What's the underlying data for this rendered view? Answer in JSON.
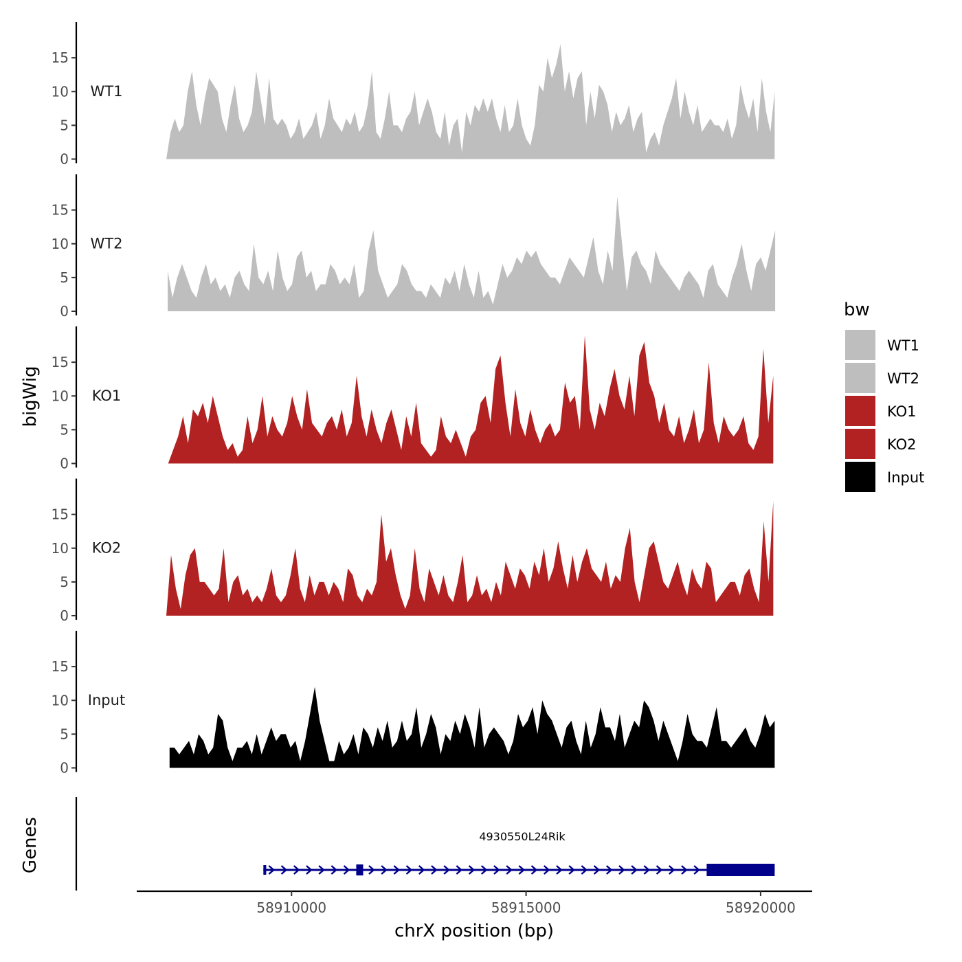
{
  "chart_data": {
    "type": "area",
    "ylabel": "bigWig",
    "xlabel": "chrX position (bp)",
    "xlim": [
      58906700,
      58921100
    ],
    "ylim": [
      0,
      20
    ],
    "yticks": [
      0,
      5,
      10,
      15
    ],
    "xticks": [
      58910000,
      58915000,
      58920000
    ],
    "xtick_labels": [
      "58910000",
      "58915000",
      "58920000"
    ],
    "legend": {
      "title": "bw",
      "position": "right",
      "entries": [
        {
          "label": "WT1",
          "color": "#bebebe"
        },
        {
          "label": "WT2",
          "color": "#bebebe"
        },
        {
          "label": "KO1",
          "color": "#b22222"
        },
        {
          "label": "KO2",
          "color": "#b22222"
        },
        {
          "label": "Input",
          "color": "#000000"
        }
      ]
    },
    "series": [
      {
        "name": "WT1",
        "color": "#bebebe",
        "x_start": 58907330,
        "x_end": 58920300,
        "values": [
          0,
          4,
          6,
          4,
          5,
          10,
          13,
          8,
          5,
          9,
          12,
          11,
          10,
          6,
          4,
          8,
          11,
          6,
          4,
          5,
          7,
          13,
          9,
          5,
          12,
          6,
          5,
          6,
          5,
          3,
          4,
          6,
          3,
          4,
          5,
          7,
          3,
          5,
          9,
          6,
          5,
          4,
          6,
          5,
          7,
          4,
          5,
          8,
          13,
          4,
          3,
          6,
          10,
          5,
          5,
          4,
          6,
          7,
          10,
          5,
          7,
          9,
          7,
          4,
          3,
          7,
          2,
          5,
          6,
          1,
          7,
          5,
          8,
          7,
          9,
          7,
          9,
          6,
          4,
          8,
          4,
          5,
          9,
          5,
          3,
          2,
          5,
          11,
          10,
          15,
          12,
          14,
          17,
          10,
          13,
          9,
          12,
          13,
          5,
          10,
          6,
          11,
          10,
          8,
          4,
          7,
          5,
          6,
          8,
          4,
          6,
          7,
          1,
          3,
          4,
          2,
          5,
          7,
          9,
          12,
          6,
          10,
          7,
          5,
          8,
          4,
          5,
          6,
          5,
          5,
          4,
          6,
          3,
          5,
          11,
          8,
          6,
          9,
          4,
          12,
          7,
          4,
          10
        ]
      },
      {
        "name": "WT2",
        "color": "#bebebe",
        "x_start": 58907360,
        "x_end": 58920310,
        "values": [
          6,
          2,
          5,
          7,
          5,
          3,
          2,
          5,
          7,
          4,
          5,
          3,
          4,
          2,
          5,
          6,
          4,
          3,
          10,
          5,
          4,
          6,
          3,
          9,
          5,
          3,
          4,
          8,
          9,
          5,
          6,
          3,
          4,
          4,
          7,
          6,
          4,
          5,
          4,
          7,
          2,
          3,
          9,
          12,
          6,
          4,
          2,
          3,
          4,
          7,
          6,
          4,
          3,
          3,
          2,
          4,
          3,
          2,
          5,
          4,
          6,
          3,
          7,
          4,
          2,
          6,
          2,
          3,
          1,
          4,
          7,
          5,
          6,
          8,
          7,
          9,
          8,
          9,
          7,
          6,
          5,
          5,
          4,
          6,
          8,
          7,
          6,
          5,
          8,
          11,
          6,
          4,
          9,
          6,
          17,
          10,
          3,
          8,
          9,
          7,
          6,
          4,
          9,
          7,
          6,
          5,
          4,
          3,
          5,
          6,
          5,
          4,
          2,
          6,
          7,
          4,
          3,
          2,
          5,
          7,
          10,
          6,
          3,
          7,
          8,
          6,
          9,
          12
        ]
      },
      {
        "name": "KO1",
        "color": "#b22222",
        "x_start": 58907370,
        "x_end": 58920270,
        "values": [
          0,
          2,
          4,
          7,
          3,
          8,
          7,
          9,
          6,
          10,
          7,
          4,
          2,
          3,
          1,
          2,
          7,
          3,
          5,
          10,
          4,
          7,
          5,
          4,
          6,
          10,
          7,
          5,
          11,
          6,
          5,
          4,
          6,
          7,
          5,
          8,
          4,
          6,
          13,
          7,
          4,
          8,
          5,
          3,
          6,
          8,
          5,
          2,
          7,
          4,
          9,
          3,
          2,
          1,
          2,
          7,
          4,
          3,
          5,
          3,
          1,
          4,
          5,
          9,
          10,
          6,
          14,
          16,
          9,
          4,
          11,
          6,
          4,
          8,
          5,
          3,
          5,
          6,
          4,
          5,
          12,
          9,
          10,
          5,
          19,
          8,
          5,
          9,
          7,
          11,
          14,
          10,
          8,
          13,
          7,
          16,
          18,
          12,
          10,
          6,
          9,
          5,
          4,
          7,
          3,
          5,
          8,
          3,
          5,
          15,
          6,
          3,
          7,
          5,
          4,
          5,
          7,
          3,
          2,
          4,
          17,
          6,
          13
        ]
      },
      {
        "name": "KO2",
        "color": "#b22222",
        "x_start": 58907330,
        "x_end": 58920270,
        "values": [
          0,
          9,
          4,
          1,
          6,
          9,
          10,
          5,
          5,
          4,
          3,
          4,
          10,
          2,
          5,
          6,
          3,
          4,
          2,
          3,
          2,
          4,
          7,
          3,
          2,
          3,
          6,
          10,
          4,
          2,
          6,
          3,
          5,
          5,
          3,
          5,
          4,
          2,
          7,
          6,
          3,
          2,
          4,
          3,
          5,
          15,
          8,
          10,
          6,
          3,
          1,
          3,
          10,
          4,
          2,
          7,
          5,
          3,
          6,
          3,
          2,
          5,
          9,
          2,
          3,
          6,
          3,
          4,
          2,
          5,
          3,
          8,
          6,
          4,
          7,
          6,
          4,
          8,
          6,
          10,
          5,
          7,
          11,
          7,
          4,
          9,
          5,
          8,
          10,
          7,
          6,
          5,
          8,
          4,
          6,
          5,
          10,
          13,
          5,
          2,
          6,
          10,
          11,
          8,
          5,
          4,
          6,
          8,
          5,
          3,
          7,
          5,
          4,
          8,
          7,
          2,
          3,
          4,
          5,
          5,
          3,
          6,
          7,
          4,
          2,
          14,
          5,
          17
        ]
      },
      {
        "name": "Input",
        "color": "#000000",
        "x_start": 58907400,
        "x_end": 58920300,
        "values": [
          3,
          3,
          2,
          3,
          4,
          2,
          5,
          4,
          2,
          3,
          8,
          7,
          3,
          1,
          3,
          3,
          4,
          2,
          5,
          2,
          4,
          6,
          4,
          5,
          5,
          3,
          4,
          1,
          4,
          8,
          12,
          7,
          4,
          1,
          1,
          4,
          2,
          3,
          5,
          2,
          6,
          5,
          3,
          6,
          4,
          7,
          3,
          4,
          7,
          4,
          5,
          9,
          3,
          5,
          8,
          6,
          2,
          5,
          4,
          7,
          5,
          8,
          6,
          3,
          9,
          3,
          5,
          6,
          5,
          4,
          2,
          4,
          8,
          6,
          7,
          9,
          5,
          10,
          8,
          7,
          5,
          3,
          6,
          7,
          4,
          2,
          7,
          3,
          5,
          9,
          6,
          6,
          4,
          8,
          3,
          5,
          7,
          6,
          10,
          9,
          7,
          4,
          7,
          5,
          3,
          1,
          4,
          8,
          5,
          4,
          4,
          3,
          6,
          9,
          4,
          4,
          3,
          4,
          5,
          6,
          4,
          3,
          5,
          8,
          6,
          7
        ]
      }
    ],
    "genes": {
      "title": "Genes",
      "name": "4930550L24Rik",
      "color": "#00008b",
      "strand": "+",
      "tx_start": 58909400,
      "tx_end": 58920300,
      "exons": [
        [
          58909400,
          58909460
        ],
        [
          58911380,
          58911500
        ],
        [
          58918850,
          58920300
        ]
      ],
      "thick_exons": [
        [
          58918850,
          58920300
        ]
      ]
    }
  }
}
